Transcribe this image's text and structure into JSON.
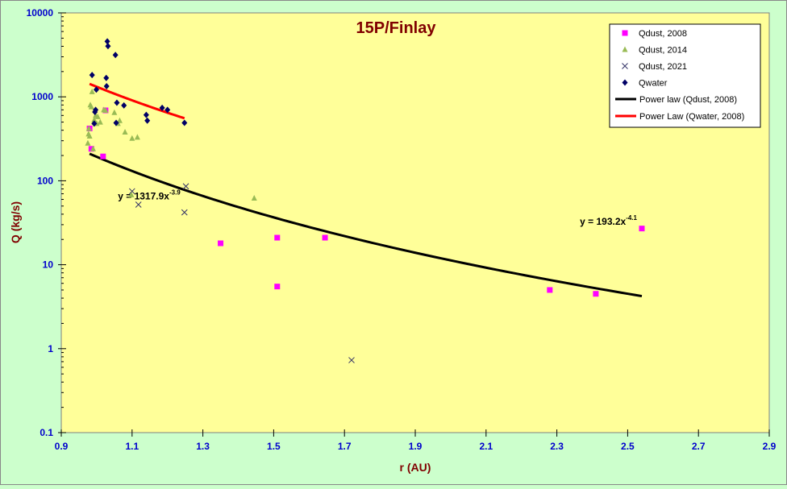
{
  "chart_data": {
    "type": "scatter",
    "title": "15P/Finlay",
    "xlabel": "r (AU)",
    "ylabel": "Q (kg/s)",
    "xlim": [
      0.9,
      2.9
    ],
    "ylim": [
      0.1,
      10000
    ],
    "yscale": "log",
    "x_ticks": [
      "0.9",
      "1.1",
      "1.3",
      "1.5",
      "1.7",
      "1.9",
      "2.1",
      "2.3",
      "2.5",
      "2.7",
      "2.9"
    ],
    "y_ticks": [
      "0.1",
      "1",
      "10",
      "100",
      "1000",
      "10000"
    ],
    "legend_position": "top-right",
    "colors": {
      "page_background": "#ccffcc",
      "plot_background": "#ffff99",
      "axis_text": "#0000cc",
      "title": "#800000",
      "axis_label": "#800000"
    },
    "series": [
      {
        "name": "Qdust, 2008",
        "marker": "square",
        "color": "#ff00ff",
        "points": [
          [
            0.98,
            420
          ],
          [
            0.985,
            240
          ],
          [
            1.018,
            195
          ],
          [
            1.025,
            690
          ],
          [
            1.35,
            18
          ],
          [
            1.51,
            21
          ],
          [
            1.51,
            5.5
          ],
          [
            1.645,
            21
          ],
          [
            2.28,
            5.0
          ],
          [
            2.41,
            4.5
          ],
          [
            2.54,
            27
          ]
        ]
      },
      {
        "name": "Qdust, 2014",
        "marker": "triangle",
        "color": "#99bb55",
        "points": [
          [
            0.975,
            280
          ],
          [
            0.977,
            360
          ],
          [
            0.978,
            420
          ],
          [
            0.98,
            340
          ],
          [
            0.982,
            800
          ],
          [
            0.985,
            760
          ],
          [
            0.987,
            1150
          ],
          [
            0.99,
            240
          ],
          [
            0.993,
            530
          ],
          [
            0.997,
            600
          ],
          [
            1.0,
            480
          ],
          [
            1.003,
            580
          ],
          [
            1.01,
            500
          ],
          [
            1.02,
            700
          ],
          [
            1.025,
            690
          ],
          [
            1.05,
            650
          ],
          [
            1.06,
            480
          ],
          [
            1.065,
            520
          ],
          [
            1.08,
            380
          ],
          [
            1.1,
            320
          ],
          [
            1.115,
            330
          ],
          [
            1.098,
            68
          ],
          [
            1.445,
            62
          ]
        ]
      },
      {
        "name": "Qdust, 2021",
        "marker": "x",
        "color": "#333366",
        "points": [
          [
            1.1,
            75
          ],
          [
            1.118,
            52
          ],
          [
            1.248,
            42
          ],
          [
            1.252,
            86
          ],
          [
            1.72,
            0.73
          ]
        ]
      },
      {
        "name": "Qwater",
        "marker": "diamond",
        "color": "#000066",
        "points": [
          [
            0.987,
            1820
          ],
          [
            0.993,
            480
          ],
          [
            0.995,
            660
          ],
          [
            0.997,
            700
          ],
          [
            0.999,
            1220
          ],
          [
            1.027,
            1680
          ],
          [
            1.028,
            1340
          ],
          [
            1.03,
            4580
          ],
          [
            1.032,
            4020
          ],
          [
            1.053,
            3150
          ],
          [
            1.055,
            490
          ],
          [
            1.057,
            850
          ],
          [
            1.077,
            790
          ],
          [
            1.14,
            610
          ],
          [
            1.143,
            520
          ],
          [
            1.185,
            740
          ],
          [
            1.2,
            700
          ],
          [
            1.248,
            490
          ]
        ]
      }
    ],
    "fits": [
      {
        "name": "Power law (Qdust, 2008)",
        "color": "#000000",
        "a": 193.2,
        "b": -4.1,
        "x_range": [
          0.98,
          2.54
        ],
        "label_coef": "y = 193.2x",
        "label_exp": "-4.1"
      },
      {
        "name": "Power Law (Qwater, 2008)",
        "color": "#ff0000",
        "a": 1317.9,
        "b": -3.9,
        "x_range": [
          0.98,
          1.248
        ],
        "label_coef": "y = 1317.9x",
        "label_exp": "-3.9"
      }
    ]
  }
}
